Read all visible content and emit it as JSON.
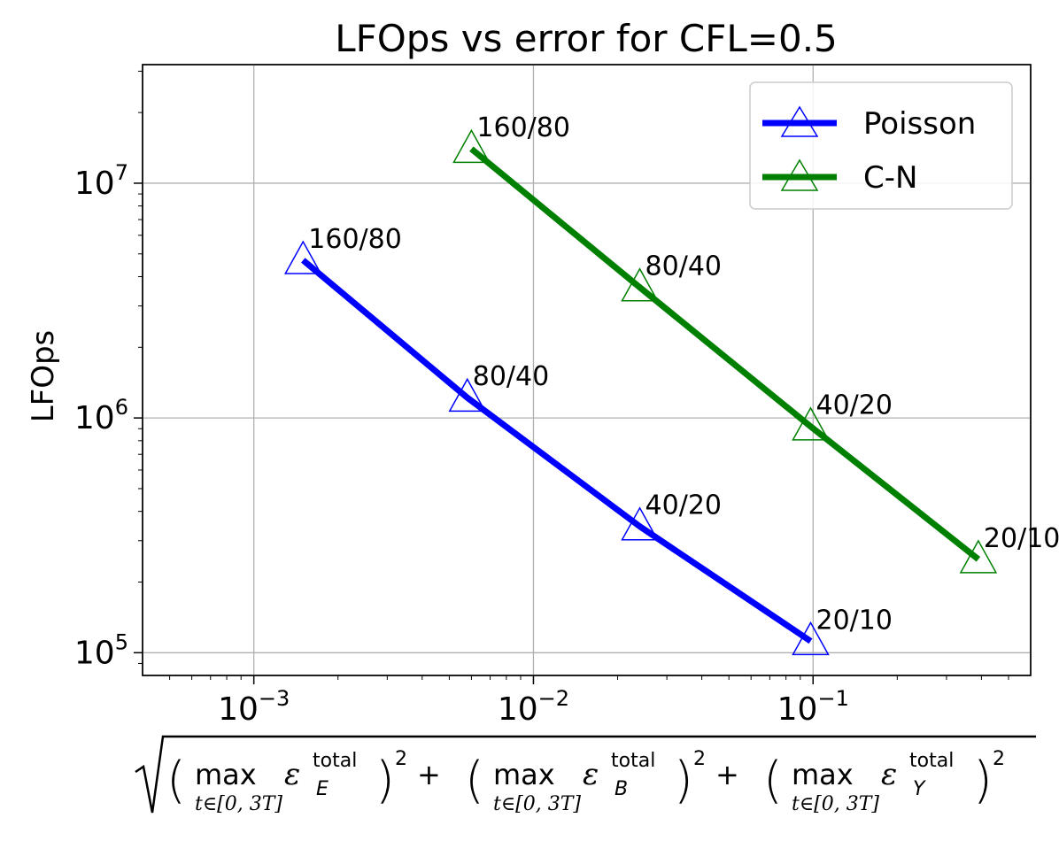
{
  "chart_data": {
    "type": "line",
    "title": "LFOps vs error for CFL=0.5",
    "ylabel": "LFOps",
    "xscale": "log",
    "yscale": "log",
    "xlim": [
      0.0004,
      0.6
    ],
    "ylim": [
      80000,
      32000000
    ],
    "grid": true,
    "legend_position": "upper right",
    "x_ticks": [
      {
        "value": 0.001,
        "base": "10",
        "exp": "−3"
      },
      {
        "value": 0.01,
        "base": "10",
        "exp": "−2"
      },
      {
        "value": 0.1,
        "base": "10",
        "exp": "−1"
      }
    ],
    "y_ticks": [
      {
        "value": 100000,
        "base": "10",
        "exp": "5"
      },
      {
        "value": 1000000,
        "base": "10",
        "exp": "6"
      },
      {
        "value": 10000000,
        "base": "10",
        "exp": "7"
      }
    ],
    "xlabel": {
      "sqrt": "√",
      "max": "max",
      "subscript": "t∈[0, 3T]",
      "epsilon": "ε",
      "superscript": "total",
      "terms": [
        "E",
        "B",
        "Y"
      ],
      "square": "2",
      "plus": "+",
      "lparen": "(",
      "rparen": ")"
    },
    "series": [
      {
        "name": "Poisson",
        "color": "#0000ff",
        "points": [
          {
            "x": 0.0015,
            "y": 4700000,
            "label": "160/80"
          },
          {
            "x": 0.0058,
            "y": 1220000,
            "label": "80/40"
          },
          {
            "x": 0.024,
            "y": 345000,
            "label": "40/20"
          },
          {
            "x": 0.098,
            "y": 112000,
            "label": "20/10"
          }
        ]
      },
      {
        "name": "C-N",
        "color": "#008000",
        "points": [
          {
            "x": 0.006,
            "y": 14000000,
            "label": "160/80"
          },
          {
            "x": 0.024,
            "y": 3600000,
            "label": "80/40"
          },
          {
            "x": 0.098,
            "y": 920000,
            "label": "40/20"
          },
          {
            "x": 0.39,
            "y": 250000,
            "label": "20/10"
          }
        ]
      }
    ]
  }
}
